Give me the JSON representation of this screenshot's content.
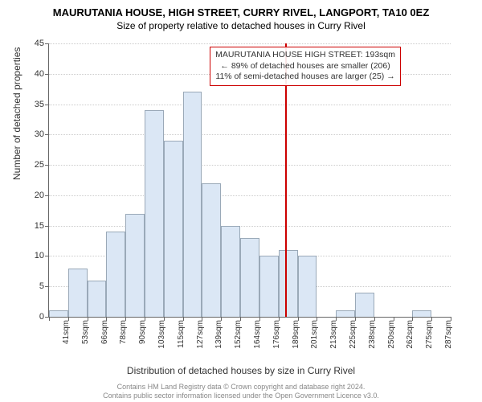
{
  "title_line1": "MAURUTANIA HOUSE, HIGH STREET, CURRY RIVEL, LANGPORT, TA10 0EZ",
  "title_line2": "Size of property relative to detached houses in Curry Rivel",
  "chart": {
    "type": "histogram",
    "y_label": "Number of detached properties",
    "x_label": "Distribution of detached houses by size in Curry Rivel",
    "ylim": [
      0,
      45
    ],
    "ytick_step": 5,
    "y_ticks": [
      0,
      5,
      10,
      15,
      20,
      25,
      30,
      35,
      40,
      45
    ],
    "bar_fill": "#dbe7f5",
    "bar_stroke": "#9aa9b8",
    "grid_color": "#cccccc",
    "axis_color": "#666666",
    "background_color": "#ffffff",
    "highlight_color": "#cc0000",
    "highlight_x_category": "189sqm",
    "categories": [
      "41sqm",
      "53sqm",
      "66sqm",
      "78sqm",
      "90sqm",
      "103sqm",
      "115sqm",
      "127sqm",
      "139sqm",
      "152sqm",
      "164sqm",
      "176sqm",
      "189sqm",
      "201sqm",
      "213sqm",
      "225sqm",
      "238sqm",
      "250sqm",
      "262sqm",
      "275sqm",
      "287sqm"
    ],
    "values": [
      1,
      8,
      6,
      14,
      17,
      34,
      29,
      37,
      22,
      15,
      13,
      10,
      11,
      10,
      0,
      1,
      4,
      0,
      0,
      1,
      0
    ],
    "label_fontsize": 12,
    "tick_fontsize": 10
  },
  "annotation": {
    "line1": "MAURUTANIA HOUSE HIGH STREET: 193sqm",
    "line2": "← 89% of detached houses are smaller (206)",
    "line3": "11% of semi-detached houses are larger (25) →"
  },
  "footer": {
    "line1": "Contains HM Land Registry data © Crown copyright and database right 2024.",
    "line2": "Contains public sector information licensed under the Open Government Licence v3.0."
  }
}
